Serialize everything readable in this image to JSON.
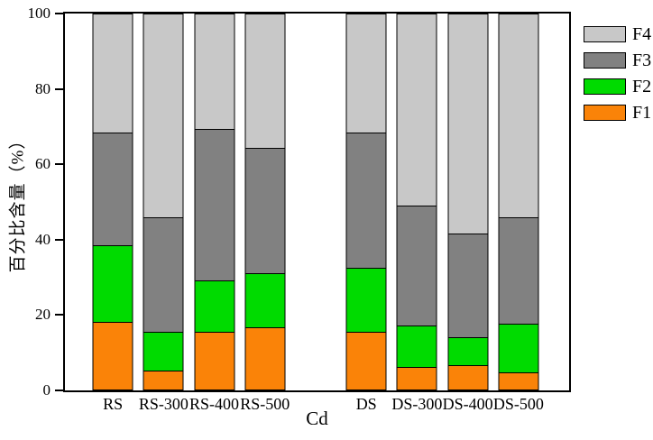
{
  "chart_data": {
    "type": "bar",
    "stacked": true,
    "title": "",
    "xlabel": "Cd",
    "ylabel": "百分比含量（%）",
    "ylim": [
      0,
      100
    ],
    "yticks": [
      0,
      20,
      40,
      60,
      80,
      100
    ],
    "grid": false,
    "categories": [
      "RS",
      "RS-300",
      "RS-400",
      "RS-500",
      "DS",
      "DS-300",
      "DS-400",
      "DS-500"
    ],
    "group_gap_after_index": 3,
    "series": [
      {
        "name": "F1",
        "color": "#FA8308",
        "values": [
          18,
          5,
          15.5,
          16.5,
          15.5,
          6,
          6.5,
          4.5
        ]
      },
      {
        "name": "F2",
        "color": "#00DB00",
        "values": [
          20.5,
          10.5,
          13.5,
          14.5,
          17,
          11,
          7.5,
          13
        ]
      },
      {
        "name": "F3",
        "color": "#818181",
        "values": [
          30,
          30.5,
          40.5,
          33.5,
          36,
          32,
          27.5,
          28.5
        ]
      },
      {
        "name": "F4",
        "color": "#C8C8C8",
        "values": [
          31.5,
          54,
          30.5,
          35.5,
          31.5,
          51,
          58.5,
          54
        ]
      }
    ],
    "legend": [
      "F4",
      "F3",
      "F2",
      "F1"
    ],
    "legend_position": "outside-top-right",
    "axis_color": "#000000",
    "background_color": "#FFFFFF"
  }
}
